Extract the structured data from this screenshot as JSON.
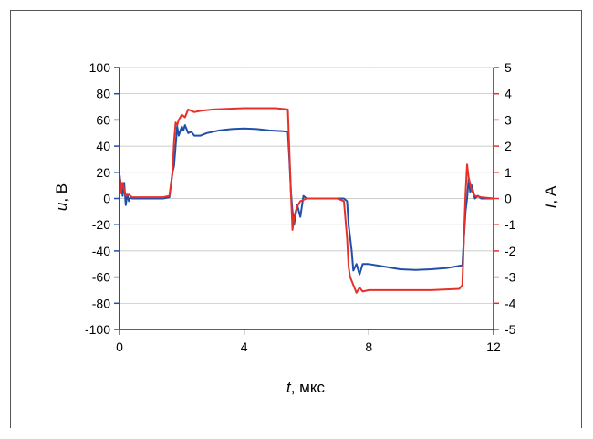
{
  "chart_data": {
    "type": "line",
    "xlabel_var": "t",
    "xlabel_unit": ", мкс",
    "ylabel_left_var": "u",
    "ylabel_left_unit": ", В",
    "ylabel_right_var": "I",
    "ylabel_right_unit": ", A",
    "xlim": [
      0,
      12
    ],
    "ylim_left": [
      -100,
      100
    ],
    "ylim_right": [
      -5,
      5
    ],
    "x_ticks": [
      0,
      4,
      8,
      12
    ],
    "x_tick_labels": [
      "0",
      "4",
      "8",
      "12"
    ],
    "y_left_ticks": [
      100,
      80,
      60,
      40,
      20,
      0,
      -20,
      -40,
      -60,
      -80,
      -100
    ],
    "y_left_tick_labels": [
      "100",
      "80",
      "60",
      "40",
      "20",
      "0",
      "-20",
      "-40",
      "-60",
      "-80",
      "-100"
    ],
    "y_right_ticks": [
      5,
      4,
      3,
      2,
      1,
      0,
      -1,
      -2,
      -3,
      -4,
      -5
    ],
    "y_right_tick_labels": [
      "5",
      "4",
      "3",
      "2",
      "1",
      "0",
      "-1",
      "-2",
      "-3",
      "-4",
      "-5"
    ],
    "grid": true,
    "colors": {
      "voltage": "#1f4fa8",
      "current": "#e8302a",
      "left_axis": "#1f4fa8",
      "right_axis": "#e8302a",
      "grid": "#bbbbbb"
    },
    "series": [
      {
        "axis": "left",
        "x": [
          0,
          0.05,
          0.1,
          0.15,
          0.2,
          0.25,
          0.3,
          0.35,
          0.4,
          0.5,
          0.6,
          0.8,
          1.0,
          1.2,
          1.4,
          1.6,
          1.7,
          1.75,
          1.8,
          1.85,
          1.9,
          2.0,
          2.05,
          2.1,
          2.2,
          2.3,
          2.4,
          2.6,
          2.8,
          3.2,
          3.6,
          4.0,
          4.4,
          4.8,
          5.2,
          5.4,
          5.45,
          5.5,
          5.55,
          5.6,
          5.7,
          5.8,
          5.9,
          6.0,
          6.2,
          6.5,
          7.0,
          7.2,
          7.3,
          7.35,
          7.4,
          7.45,
          7.5,
          7.6,
          7.7,
          7.8,
          8.0,
          8.5,
          9.0,
          9.5,
          10.0,
          10.5,
          11.0,
          11.05,
          11.1,
          11.15,
          11.2,
          11.25,
          11.3,
          11.4,
          11.5,
          11.6,
          11.8,
          12.0
        ],
        "values": [
          18,
          10,
          2,
          12,
          -5,
          3,
          -2,
          1,
          0,
          0,
          0,
          0,
          0,
          0,
          0,
          1,
          20,
          25,
          40,
          55,
          48,
          55,
          52,
          56,
          50,
          51,
          48,
          48,
          50,
          52,
          53,
          53.5,
          53,
          52,
          51.5,
          51,
          30,
          5,
          -10,
          -20,
          -5,
          -14,
          2,
          0,
          0,
          0,
          0,
          0,
          -2,
          -20,
          -30,
          -40,
          -55,
          -50,
          -58,
          -50,
          -50,
          -52,
          -54,
          -54.5,
          -54,
          -53,
          -51,
          -30,
          -10,
          0,
          15,
          5,
          10,
          0,
          2,
          0,
          0,
          0
        ]
      },
      {
        "axis": "right",
        "x": [
          0,
          0.05,
          0.1,
          0.2,
          0.3,
          0.4,
          0.6,
          1.0,
          1.4,
          1.6,
          1.7,
          1.75,
          1.8,
          1.85,
          1.9,
          2.0,
          2.1,
          2.2,
          2.4,
          2.6,
          3.0,
          4.0,
          5.0,
          5.4,
          5.45,
          5.5,
          5.55,
          5.6,
          5.7,
          5.8,
          6.0,
          6.5,
          7.0,
          7.2,
          7.3,
          7.35,
          7.4,
          7.5,
          7.6,
          7.7,
          7.8,
          8.0,
          9.0,
          10.0,
          10.9,
          11.0,
          11.05,
          11.1,
          11.15,
          11.2,
          11.3,
          11.4,
          11.6,
          12.0
        ],
        "values": [
          0.9,
          0.2,
          0.6,
          0.1,
          0.15,
          0.05,
          0.05,
          0.05,
          0.05,
          0.1,
          1.0,
          2.2,
          2.9,
          2.8,
          3.0,
          3.2,
          3.1,
          3.4,
          3.3,
          3.35,
          3.4,
          3.45,
          3.45,
          3.4,
          1.8,
          0.2,
          -1.2,
          -0.7,
          -0.3,
          -0.1,
          0.0,
          0.0,
          0.0,
          -0.1,
          -1.5,
          -2.6,
          -3.0,
          -3.3,
          -3.6,
          -3.4,
          -3.55,
          -3.5,
          -3.5,
          -3.5,
          -3.45,
          -3.3,
          -1.5,
          0.2,
          1.3,
          0.8,
          0.3,
          0.1,
          0.05,
          0.0
        ]
      }
    ]
  }
}
